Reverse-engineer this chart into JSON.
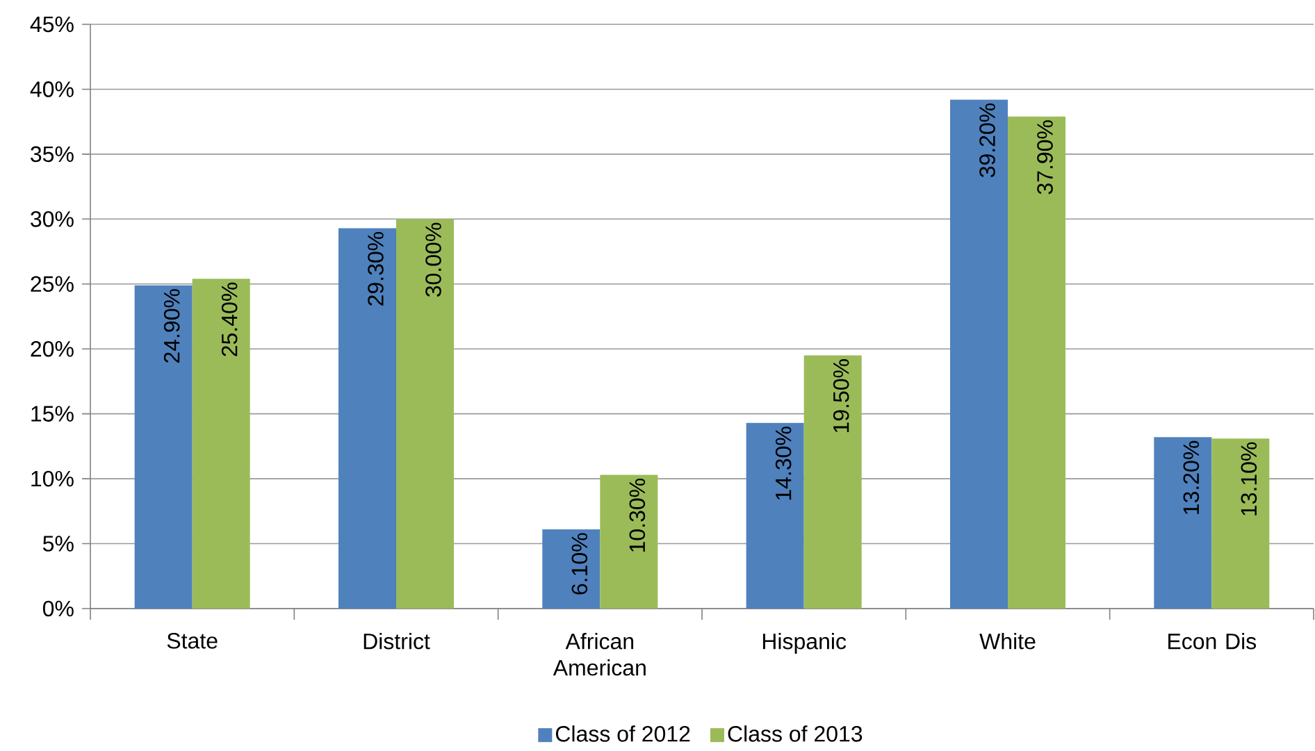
{
  "chart_data": {
    "type": "bar",
    "categories": [
      "State",
      "District",
      "African American",
      "Hispanic",
      "White",
      "Econ Dis"
    ],
    "series": [
      {
        "name": "Class of 2012",
        "color": "#4f81bd",
        "values": [
          24.9,
          29.3,
          6.1,
          14.3,
          39.2,
          13.2
        ],
        "value_labels": [
          "24.90%",
          "29.30%",
          "6.10%",
          "14.30%",
          "39.20%",
          "13.20%"
        ]
      },
      {
        "name": "Class of 2013",
        "color": "#9bbb59",
        "values": [
          25.4,
          30.0,
          10.3,
          19.5,
          37.9,
          13.1
        ],
        "value_labels": [
          "25.40%",
          "30.00%",
          "10.30%",
          "19.50%",
          "37.90%",
          "13.10%"
        ]
      }
    ],
    "ylim": [
      0,
      45
    ],
    "yticks": [
      {
        "value": 0,
        "label": "0%"
      },
      {
        "value": 5,
        "label": "5%"
      },
      {
        "value": 10,
        "label": "10%"
      },
      {
        "value": 15,
        "label": "15%"
      },
      {
        "value": 20,
        "label": "20%"
      },
      {
        "value": 25,
        "label": "25%"
      },
      {
        "value": 30,
        "label": "30%"
      },
      {
        "value": 35,
        "label": "35%"
      },
      {
        "value": 40,
        "label": "40%"
      },
      {
        "value": 45,
        "label": "45%"
      }
    ],
    "grid": "y",
    "legend": "bottom"
  }
}
